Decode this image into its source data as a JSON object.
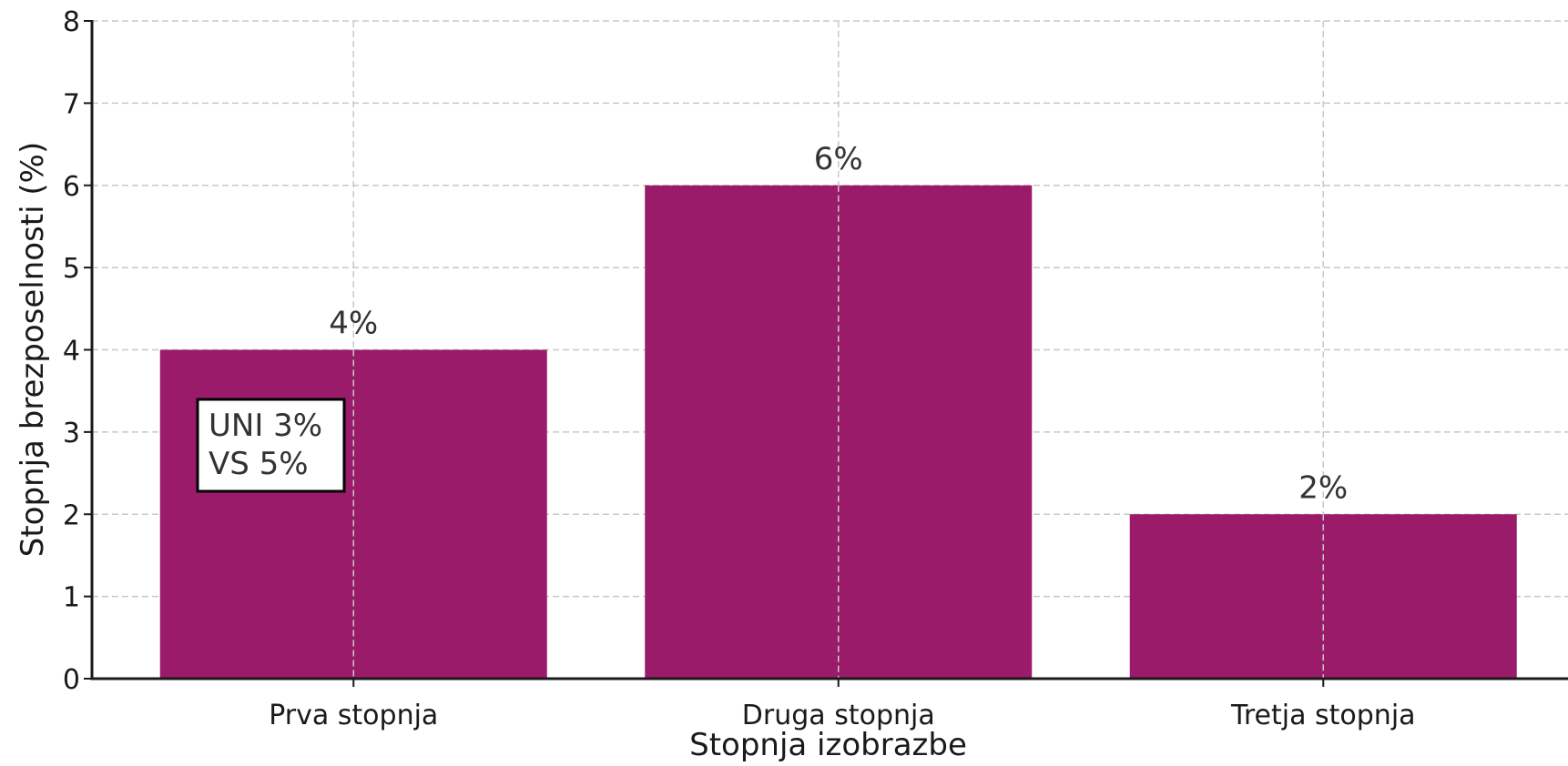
{
  "chart_data": {
    "type": "bar",
    "categories": [
      "Prva stopnja",
      "Druga stopnja",
      "Tretja stopnja"
    ],
    "values": [
      4,
      6,
      2
    ],
    "data_labels": [
      "4%",
      "6%",
      "2%"
    ],
    "title": "",
    "xlabel": "Stopnja izobrazbe",
    "ylabel": "Stopnja brezposelnosti (%)",
    "ylim": [
      0,
      8
    ],
    "yticks": [
      0,
      1,
      2,
      3,
      4,
      5,
      6,
      7,
      8
    ],
    "grid": true,
    "bar_color": "#9b1b6b",
    "annotation": {
      "lines": [
        "UNI 3%",
        "VS 5%"
      ],
      "category": "Prva stopnja"
    }
  }
}
